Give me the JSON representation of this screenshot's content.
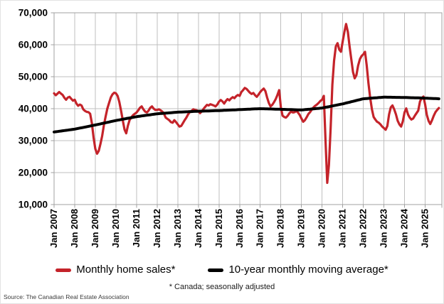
{
  "chart_data": {
    "type": "line",
    "title": "",
    "grid": true,
    "legend_position": "bottom",
    "footnote": "* Canada; seasonally adjusted",
    "source": "Source: The Canadian Real Estate Association",
    "x_axis": {
      "frequency": "monthly",
      "start": "Jan 2007",
      "end": "Sep 2025",
      "tick_labels": [
        "Jan 2007",
        "Jan 2008",
        "Jan 2009",
        "Jan 2010",
        "Jan 2011",
        "Jan 2012",
        "Jan 2013",
        "Jan 2014",
        "Jan 2015",
        "Jan 2016",
        "Jan 2017",
        "Jan 2018",
        "Jan 2019",
        "Jan 2020",
        "Jan 2021",
        "Jan 2022",
        "Jan 2023",
        "Jan 2024",
        "Jan 2025"
      ]
    },
    "y_axis": {
      "min": 10000,
      "max": 70000,
      "tick_step": 10000,
      "tick_labels": [
        "70,000",
        "60,000",
        "50,000",
        "40,000",
        "30,000",
        "20,000",
        "10,000"
      ]
    },
    "series": [
      {
        "id": "monthly-home-sales",
        "name": "Monthly home sales*",
        "color": "#c4232a",
        "width": 3.2,
        "values": [
          44800,
          44200,
          44700,
          45200,
          44700,
          44300,
          43400,
          42800,
          43500,
          43700,
          43100,
          42500,
          42800,
          41600,
          40900,
          41300,
          41000,
          39800,
          39300,
          39000,
          38900,
          38400,
          35500,
          31000,
          27500,
          25900,
          26800,
          29000,
          31500,
          34800,
          37500,
          40000,
          41800,
          43500,
          44500,
          45000,
          44800,
          44000,
          42100,
          39300,
          36300,
          33500,
          32300,
          34700,
          36500,
          37300,
          38000,
          38400,
          38800,
          39500,
          40300,
          40700,
          39800,
          39100,
          38800,
          39400,
          40300,
          40700,
          40000,
          39600,
          39600,
          39800,
          39500,
          39100,
          38400,
          37200,
          36800,
          36400,
          35800,
          35600,
          36400,
          35800,
          35100,
          34400,
          34600,
          35500,
          36400,
          37200,
          38200,
          38900,
          39300,
          39800,
          39600,
          39500,
          39200,
          38600,
          39200,
          39900,
          40600,
          41200,
          41000,
          41400,
          41200,
          41000,
          40700,
          41300,
          42200,
          42700,
          42300,
          41600,
          42400,
          43000,
          42600,
          43200,
          43600,
          43300,
          43900,
          44300,
          44000,
          45200,
          45800,
          46500,
          46200,
          45600,
          45000,
          44600,
          44900,
          44200,
          43700,
          44400,
          45200,
          45800,
          46300,
          45500,
          43500,
          41800,
          40700,
          41200,
          42000,
          43000,
          44300,
          45800,
          40500,
          37800,
          37400,
          37200,
          37800,
          38600,
          39100,
          38800,
          38900,
          39300,
          38800,
          38000,
          36900,
          35900,
          36400,
          37300,
          38300,
          38900,
          39700,
          40400,
          40900,
          41300,
          41800,
          42400,
          42800,
          44000,
          30000,
          16800,
          22500,
          34000,
          47500,
          55000,
          59500,
          60500,
          58500,
          57800,
          61000,
          64000,
          66500,
          64000,
          59500,
          55500,
          51500,
          49500,
          50500,
          53500,
          55500,
          56500,
          57000,
          57800,
          53500,
          48000,
          43500,
          39800,
          37400,
          36600,
          35900,
          35600,
          35100,
          34400,
          33900,
          33400,
          34600,
          38200,
          40400,
          41000,
          39800,
          38200,
          36200,
          35100,
          34400,
          36000,
          38800,
          40100,
          38200,
          37200,
          36600,
          36900,
          37800,
          38600,
          39400,
          42300,
          43300,
          43800,
          41300,
          38000,
          36200,
          35200,
          36400,
          37800,
          38900,
          39600,
          40200
        ]
      },
      {
        "id": "ten-year-moving-average",
        "name": "10-year monthly moving average*",
        "color": "#000000",
        "width": 4,
        "values": [
          32700,
          32780,
          32850,
          32930,
          33000,
          33080,
          33150,
          33230,
          33300,
          33380,
          33450,
          33530,
          33600,
          33710,
          33820,
          33930,
          34030,
          34140,
          34250,
          34360,
          34470,
          34580,
          34680,
          34790,
          34900,
          35020,
          35130,
          35250,
          35370,
          35480,
          35600,
          35720,
          35830,
          35950,
          36070,
          36180,
          36300,
          36400,
          36500,
          36600,
          36700,
          36800,
          36900,
          37000,
          37100,
          37200,
          37300,
          37400,
          37500,
          37580,
          37650,
          37730,
          37800,
          37880,
          37950,
          38030,
          38100,
          38180,
          38250,
          38330,
          38400,
          38440,
          38480,
          38520,
          38570,
          38610,
          38650,
          38690,
          38730,
          38780,
          38820,
          38860,
          38900,
          38930,
          38950,
          38980,
          39000,
          39030,
          39050,
          39080,
          39100,
          39130,
          39150,
          39180,
          39200,
          39220,
          39230,
          39250,
          39270,
          39280,
          39300,
          39320,
          39330,
          39350,
          39370,
          39380,
          39400,
          39430,
          39450,
          39480,
          39500,
          39530,
          39550,
          39580,
          39600,
          39630,
          39650,
          39680,
          39700,
          39730,
          39750,
          39780,
          39800,
          39830,
          39850,
          39880,
          39900,
          39930,
          39950,
          39980,
          40000,
          39980,
          39970,
          39950,
          39930,
          39920,
          39900,
          39880,
          39870,
          39850,
          39830,
          39820,
          39800,
          39780,
          39770,
          39750,
          39730,
          39720,
          39700,
          39680,
          39670,
          39650,
          39630,
          39620,
          39600,
          39650,
          39700,
          39750,
          39800,
          39850,
          39900,
          39950,
          40000,
          40050,
          40100,
          40150,
          40200,
          40310,
          40420,
          40530,
          40630,
          40740,
          40850,
          40960,
          41070,
          41180,
          41280,
          41390,
          41500,
          41630,
          41770,
          41900,
          42030,
          42170,
          42300,
          42430,
          42570,
          42700,
          42830,
          42970,
          43100,
          43140,
          43180,
          43230,
          43270,
          43310,
          43350,
          43390,
          43430,
          43480,
          43520,
          43560,
          43600,
          43590,
          43580,
          43580,
          43570,
          43560,
          43550,
          43540,
          43530,
          43530,
          43520,
          43510,
          43500,
          43480,
          43470,
          43450,
          43430,
          43420,
          43400,
          43380,
          43370,
          43350,
          43330,
          43320,
          43300,
          43280,
          43250,
          43230,
          43200,
          43180,
          43150,
          43130,
          43100
        ]
      }
    ]
  },
  "colors": {
    "gridline": "#bfbfbf",
    "axis_frame": "#a0a0a0",
    "tick_label": "#000000"
  }
}
